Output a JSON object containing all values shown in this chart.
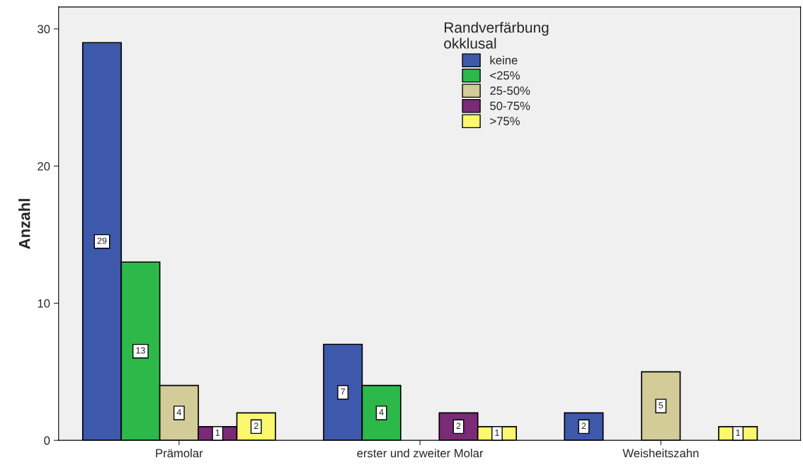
{
  "chart_data": {
    "type": "bar",
    "ylabel": "Anzahl",
    "legend_title": "Randverfärbung\nokklusal",
    "categories": [
      "Prämolar",
      "erster und zweiter Molar",
      "Weisheitszahn"
    ],
    "series": [
      {
        "name": "keine",
        "color": "#3e58ac",
        "values": [
          29,
          7,
          2
        ]
      },
      {
        "name": "<25%",
        "color": "#2db84a",
        "values": [
          13,
          4,
          null
        ]
      },
      {
        "name": "25-50%",
        "color": "#d3cc98",
        "values": [
          4,
          null,
          5
        ]
      },
      {
        "name": "50-75%",
        "color": "#7b2a78",
        "values": [
          1,
          2,
          null
        ]
      },
      {
        "name": ">75%",
        "color": "#fbf870",
        "values": [
          2,
          1,
          1
        ]
      }
    ],
    "ylim": [
      0,
      31.6
    ],
    "yticks": [
      0,
      10,
      20,
      30
    ],
    "grid": false,
    "legend": "top",
    "data_labels": true
  }
}
